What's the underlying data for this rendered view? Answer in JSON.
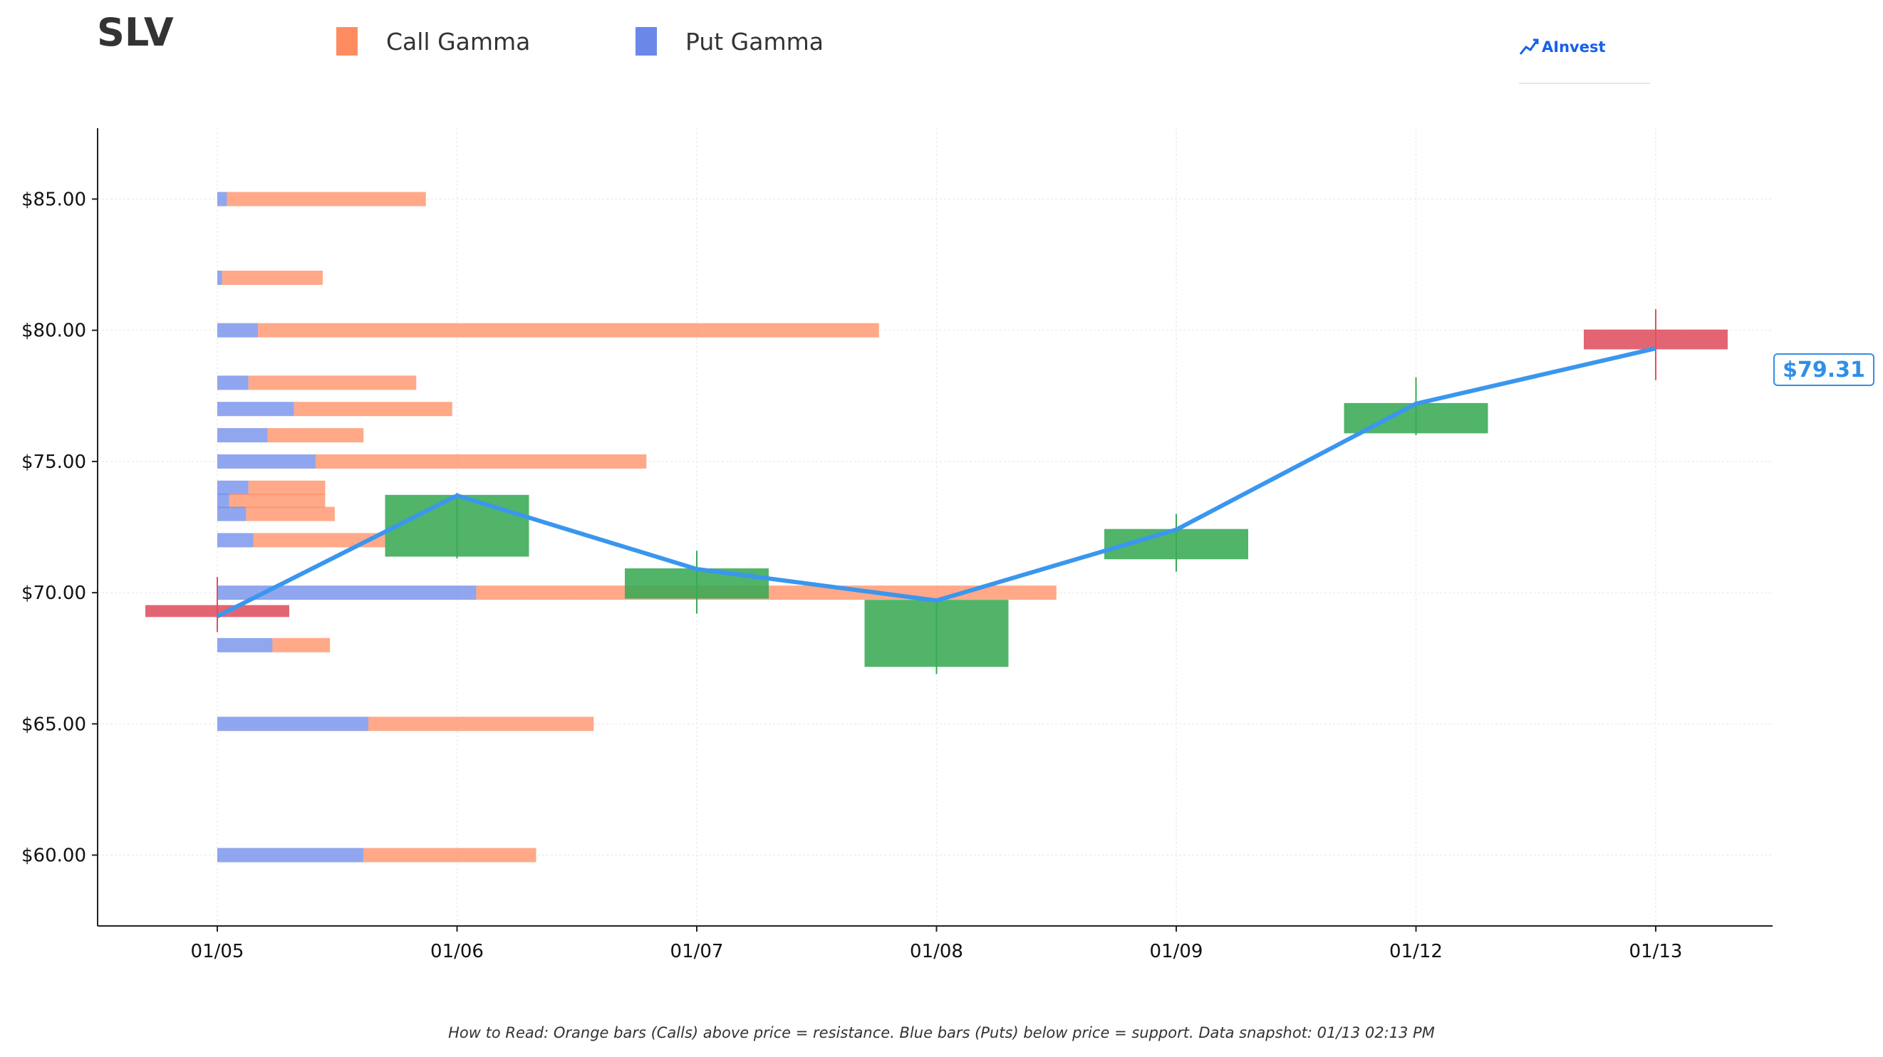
{
  "header": {
    "title": "SLV",
    "logo_text": "AInvest"
  },
  "legend": [
    {
      "label": "Call Gamma",
      "color": "#ff8c61"
    },
    {
      "label": "Put Gamma",
      "color": "#6b88e8"
    }
  ],
  "footer": {
    "note": "How to Read: Orange bars (Calls) above price = resistance. Blue bars (Puts) below price = support. Data snapshot: 01/13 02:13 PM"
  },
  "price_tag": "$79.31",
  "chart_data": {
    "type": "candlestick",
    "categories": [
      "01/05",
      "01/06",
      "01/07",
      "01/08",
      "01/09",
      "01/12",
      "01/13"
    ],
    "ylim": [
      57.3,
      87.7
    ],
    "yticks": [
      60,
      65,
      70,
      75,
      80,
      85
    ],
    "ytick_labels": [
      "$60.00",
      "$65.00",
      "$70.00",
      "$75.00",
      "$80.00",
      "$85.00"
    ],
    "colors": {
      "up": "#3aaa55",
      "down": "#e05060",
      "line": "#3a96ee",
      "call": "#ff8c61",
      "put": "#6b88e8"
    },
    "candles": [
      {
        "date": "01/05",
        "open": 69.5,
        "close": 69.1,
        "high": 70.6,
        "low": 68.5
      },
      {
        "date": "01/06",
        "open": 71.4,
        "close": 73.7,
        "high": 73.8,
        "low": 71.3
      },
      {
        "date": "01/07",
        "open": 69.8,
        "close": 70.9,
        "high": 71.6,
        "low": 69.2
      },
      {
        "date": "01/08",
        "open": 67.2,
        "close": 69.7,
        "high": 69.7,
        "low": 66.9
      },
      {
        "date": "01/09",
        "open": 71.3,
        "close": 72.4,
        "high": 73.0,
        "low": 70.8
      },
      {
        "date": "01/12",
        "open": 76.1,
        "close": 77.2,
        "high": 78.2,
        "low": 76.0
      },
      {
        "date": "01/13",
        "open": 80.0,
        "close": 79.3,
        "high": 80.8,
        "low": 78.1
      }
    ],
    "close_line": [
      69.1,
      73.7,
      70.9,
      69.7,
      72.4,
      77.2,
      79.31
    ],
    "gamma_bars": [
      {
        "strike": 85,
        "put": 0.04,
        "call": 0.83
      },
      {
        "strike": 82,
        "put": 0.02,
        "call": 0.42
      },
      {
        "strike": 80,
        "put": 0.17,
        "call": 2.59
      },
      {
        "strike": 78,
        "put": 0.13,
        "call": 0.7
      },
      {
        "strike": 77,
        "put": 0.32,
        "call": 0.66
      },
      {
        "strike": 76,
        "put": 0.21,
        "call": 0.4
      },
      {
        "strike": 75,
        "put": 0.41,
        "call": 1.38
      },
      {
        "strike": 74,
        "put": 0.13,
        "call": 0.32
      },
      {
        "strike": 73.5,
        "put": 0.05,
        "call": 0.4
      },
      {
        "strike": 73,
        "put": 0.12,
        "call": 0.37
      },
      {
        "strike": 72,
        "put": 0.15,
        "call": 0.55
      },
      {
        "strike": 70,
        "put": 1.08,
        "call": 2.42
      },
      {
        "strike": 68,
        "put": 0.23,
        "call": 0.24
      },
      {
        "strike": 65,
        "put": 0.63,
        "call": 0.94
      },
      {
        "strike": 60,
        "put": 0.61,
        "call": 0.72
      }
    ]
  }
}
